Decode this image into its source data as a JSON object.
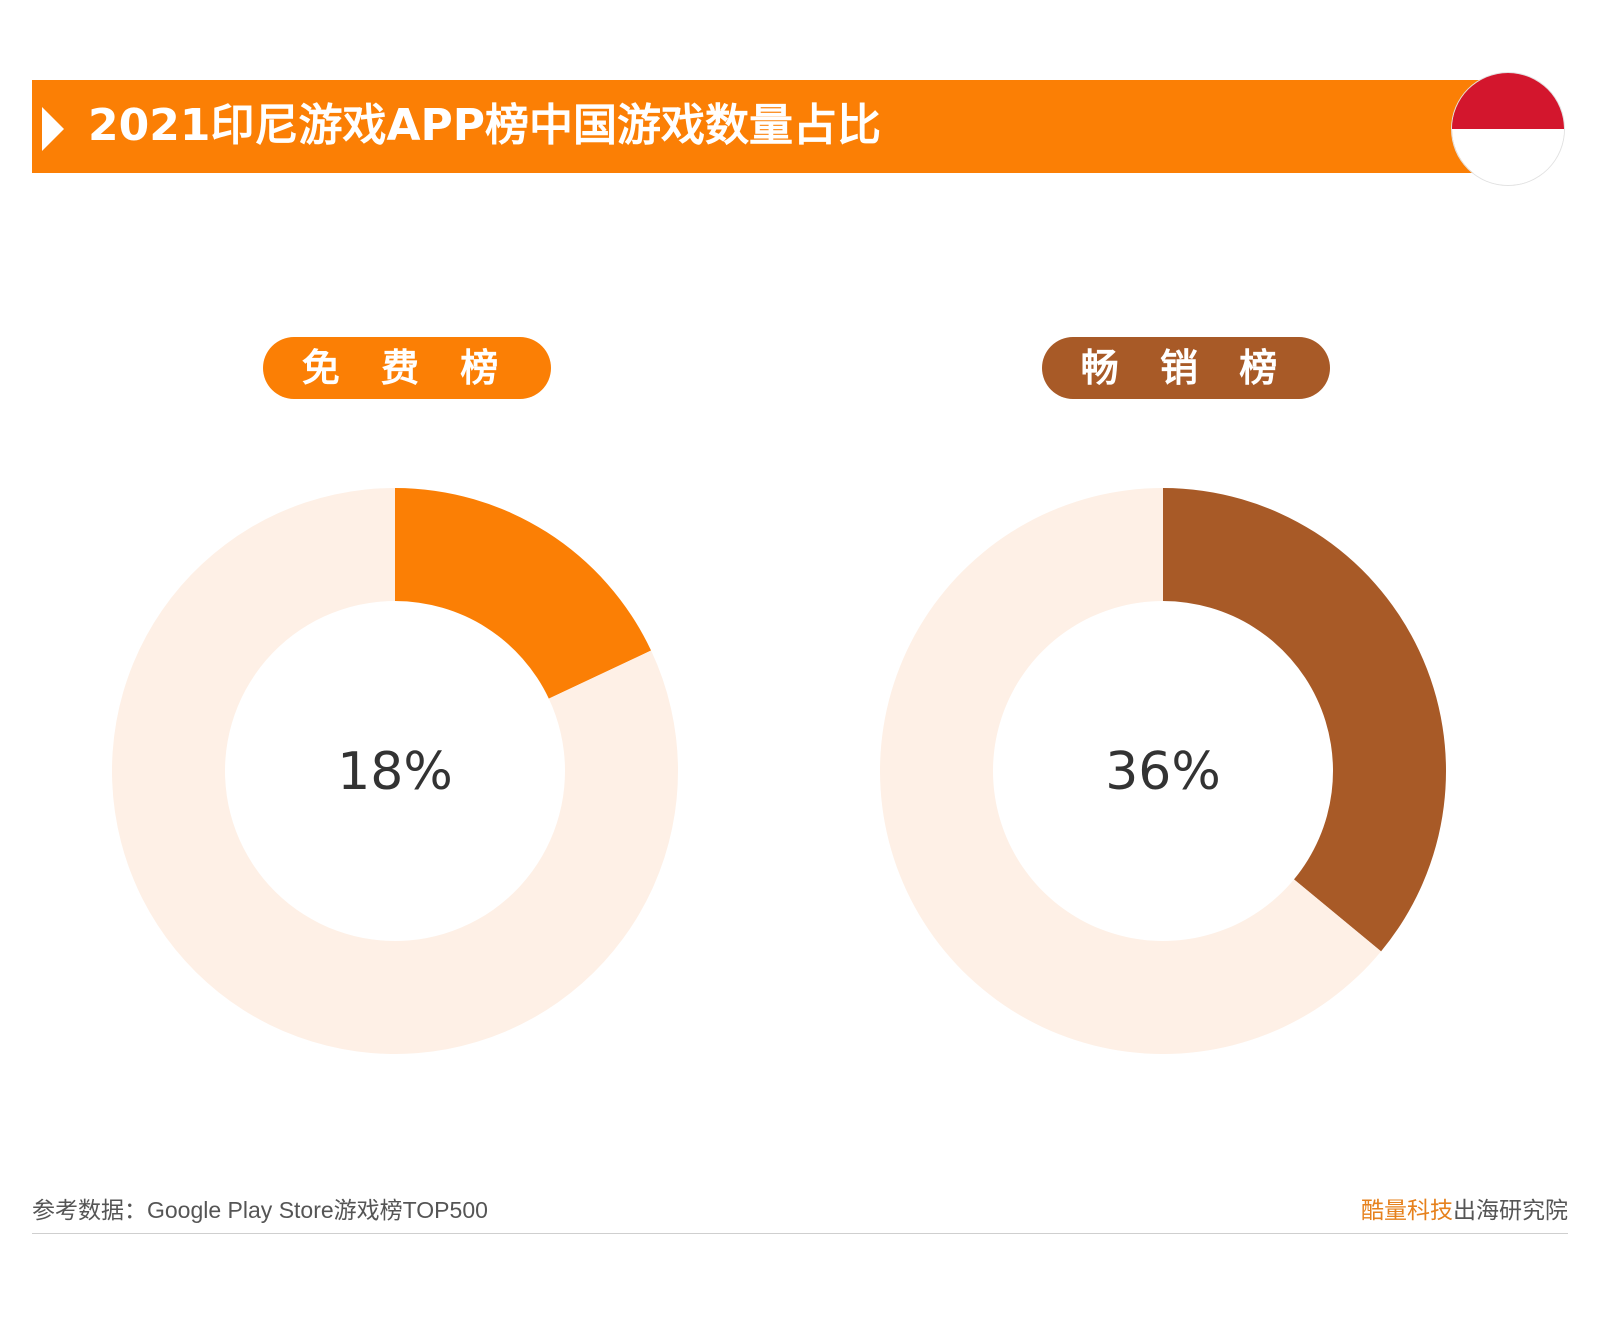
{
  "header": {
    "title": "2021印尼游戏APP榜中国游戏数量占比"
  },
  "colors": {
    "accent": "#fb7f05",
    "secondary": "#a85a27",
    "track": "#fef0e6",
    "text": "#333333"
  },
  "chart_data": [
    {
      "type": "pie",
      "title": "免 费 榜",
      "slices": [
        {
          "value": 18
        },
        {
          "value": 82
        }
      ],
      "center_label": "18%",
      "color": "#fb7f05",
      "track_color": "#fef0e6"
    },
    {
      "type": "pie",
      "title": "畅 销 榜",
      "slices": [
        {
          "value": 36
        },
        {
          "value": 64
        }
      ],
      "center_label": "36%",
      "color": "#a85a27",
      "track_color": "#fef0e6"
    }
  ],
  "footer": {
    "source": "参考数据：Google Play Store游戏榜TOP500",
    "brand_part1": "酷量科技",
    "brand_part2": "出海研究院"
  }
}
